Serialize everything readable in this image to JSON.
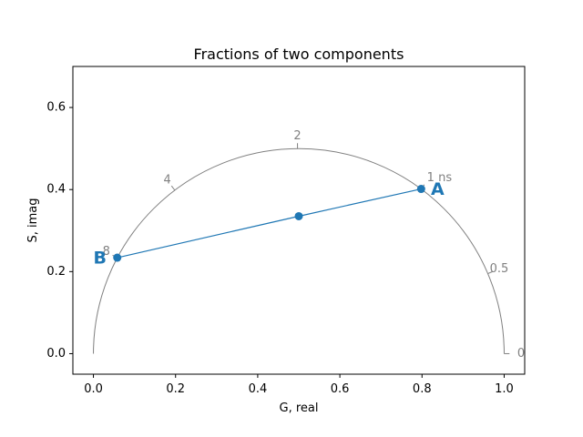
{
  "chart_data": {
    "type": "scatter",
    "title": "Fractions of two components",
    "xlabel": "G, real",
    "ylabel": "S, imag",
    "xlim": [
      -0.05,
      1.05
    ],
    "ylim": [
      -0.05,
      0.7
    ],
    "grid": false,
    "x_ticks": [
      "0.0",
      "0.2",
      "0.4",
      "0.6",
      "0.8",
      "1.0"
    ],
    "y_ticks": [
      "0.0",
      "0.2",
      "0.4",
      "0.6"
    ],
    "universal_semicircle": {
      "center": [
        0.5,
        0
      ],
      "radius": 0.5,
      "color": "#808080",
      "lifetime_ticks": [
        {
          "label": "0",
          "g": 1.0,
          "s": 0.0
        },
        {
          "label": "0.5",
          "g": 0.9602,
          "s": 0.1951
        },
        {
          "label": "1 ns",
          "g": 0.7979,
          "s": 0.4015
        },
        {
          "label": "2",
          "g": 0.4969,
          "s": 0.5
        },
        {
          "label": "4",
          "g": 0.198,
          "s": 0.3985
        },
        {
          "label": "8",
          "g": 0.0581,
          "s": 0.2339
        }
      ]
    },
    "series": [
      {
        "color": "#1f77b4",
        "x": [
          0.0581,
          0.5,
          0.7979
        ],
        "y": [
          0.2339,
          0.335,
          0.4015
        ]
      }
    ],
    "component_labels": [
      {
        "text": "A",
        "g": 0.7979,
        "s": 0.4015
      },
      {
        "text": "B",
        "g": 0.0581,
        "s": 0.2339
      }
    ],
    "colors": {
      "series": "#1f77b4",
      "semicircle": "#808080"
    }
  }
}
